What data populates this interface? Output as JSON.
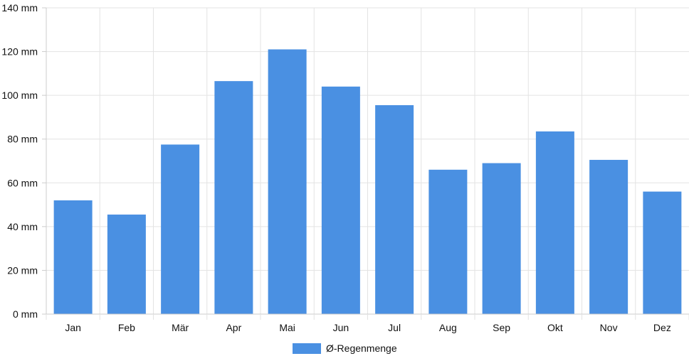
{
  "chart_data": {
    "type": "bar",
    "categories": [
      "Jan",
      "Feb",
      "Mär",
      "Apr",
      "Mai",
      "Jun",
      "Jul",
      "Aug",
      "Sep",
      "Okt",
      "Nov",
      "Dez"
    ],
    "series": [
      {
        "name": "Ø-Regenmenge",
        "color": "#4a90e2",
        "values": [
          52,
          45.5,
          77.5,
          106.5,
          121,
          104,
          95.5,
          66,
          69,
          83.5,
          70.5,
          56
        ]
      }
    ],
    "y_ticks": [
      "0 mm",
      "20 mm",
      "40 mm",
      "60 mm",
      "80 mm",
      "100 mm",
      "120 mm",
      "140 mm"
    ],
    "ylim": [
      0,
      140
    ],
    "y_unit": "mm",
    "grid": true,
    "legend_position": "bottom",
    "gridline_color": "#e3e3e3",
    "axis_color": "#cccccc"
  }
}
